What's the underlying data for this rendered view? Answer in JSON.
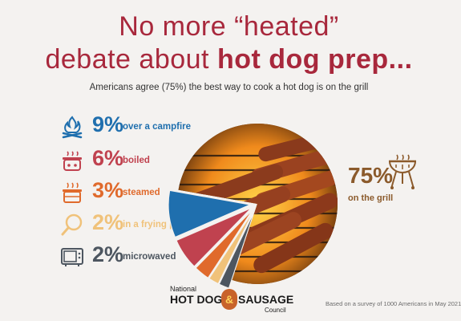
{
  "title": {
    "line1": "No more “heated”",
    "line2_regular": "debate about ",
    "line2_bold": "hot dog prep..."
  },
  "subtitle": "Americans agree (75%) the best way to cook a hot dog is on the grill",
  "legend": [
    {
      "pct": "9%",
      "label": "over a campfire",
      "color": "#1f6fae",
      "icon": "campfire-icon"
    },
    {
      "pct": "6%",
      "label": "boiled",
      "color": "#c0424f",
      "icon": "pot-icon"
    },
    {
      "pct": "3%",
      "label": "steamed",
      "color": "#e06a2c",
      "icon": "steamer-icon"
    },
    {
      "pct": "2%",
      "label": "in a frying pan",
      "color": "#f0c27a",
      "icon": "frying-pan-icon"
    },
    {
      "pct": "2%",
      "label": "microwaved",
      "color": "#4d5660",
      "icon": "microwave-icon"
    }
  ],
  "grill_callout": {
    "value": "75%",
    "label": "on the grill",
    "icon": "grill-icon",
    "color": "#8b5a2b"
  },
  "logo": {
    "line1": "National",
    "line2a": "HOT DOG",
    "amp": "&",
    "line2b": "SAUSAGE",
    "line3": "Council"
  },
  "footnote": "Based on a survey of 1000 Americans in May 2021",
  "chart_data": {
    "type": "pie",
    "title": "No more “heated” debate about hot dog prep...",
    "subtitle": "Americans agree (75%) the best way to cook a hot dog is on the grill",
    "categories": [
      "on the grill",
      "over a campfire",
      "boiled",
      "steamed",
      "in a frying pan",
      "microwaved"
    ],
    "values": [
      75,
      9,
      6,
      3,
      2,
      2
    ],
    "colors": [
      "#6b3a1f",
      "#1f6fae",
      "#c0424f",
      "#e06a2c",
      "#f0c27a",
      "#4d5660"
    ]
  }
}
